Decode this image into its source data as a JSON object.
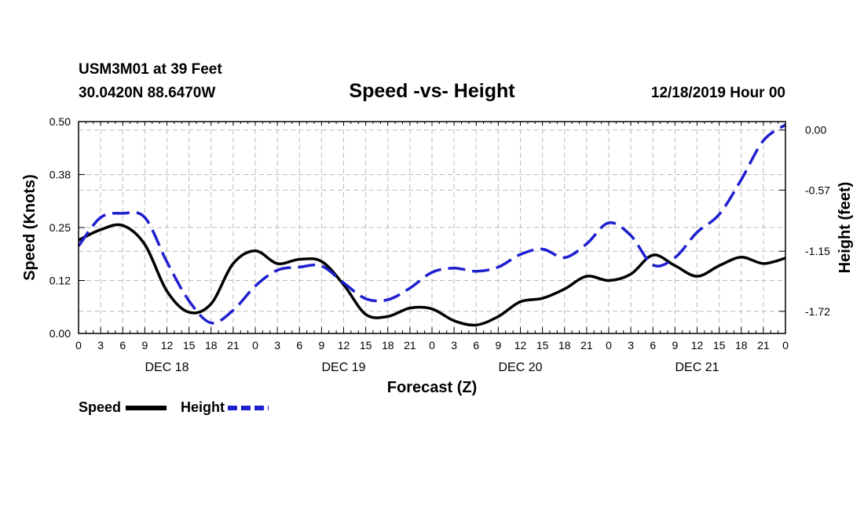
{
  "header": {
    "station": "USM3M01 at 39 Feet",
    "coords": "30.0420N 88.6470W",
    "date": "12/18/2019 Hour 00"
  },
  "legend": {
    "speed_label": "Speed",
    "height_label": "Height"
  },
  "colors": {
    "speed": "#000000",
    "height": "#1f1fd0",
    "grid": "#bbbbbb"
  },
  "chart_data": {
    "type": "line",
    "title": "Speed -vs- Height",
    "xlabel": "Forecast (Z)",
    "ylabel": "Speed (Knots)",
    "y2label": "Height (feet)",
    "x_range": [
      0,
      96
    ],
    "x_ticks": [
      0,
      3,
      6,
      9,
      12,
      15,
      18,
      21,
      24,
      27,
      30,
      33,
      36,
      39,
      42,
      45,
      48,
      51,
      54,
      57,
      60,
      63,
      66,
      69,
      72,
      75,
      78,
      81,
      84,
      87,
      90,
      93,
      96
    ],
    "x_tick_labels": [
      "0",
      "3",
      "6",
      "9",
      "12",
      "15",
      "18",
      "21",
      "0",
      "3",
      "6",
      "9",
      "12",
      "15",
      "18",
      "21",
      "0",
      "3",
      "6",
      "9",
      "12",
      "15",
      "18",
      "21",
      "0",
      "3",
      "6",
      "9",
      "12",
      "15",
      "18",
      "21",
      "0"
    ],
    "day_labels": [
      {
        "label": "DEC 18",
        "x": 12
      },
      {
        "label": "DEC 19",
        "x": 36
      },
      {
        "label": "DEC 20",
        "x": 60
      },
      {
        "label": "DEC 21",
        "x": 84
      }
    ],
    "y_left": {
      "range": [
        0,
        0.5
      ],
      "ticks": [
        0,
        0.125,
        0.25,
        0.375,
        0.5
      ],
      "tick_labels": [
        "0.00",
        "0.12",
        "0.25",
        "0.38",
        "0.50"
      ]
    },
    "y_right": {
      "range": [
        -1.93,
        0.08
      ],
      "ticks": [
        0,
        -0.57,
        -1.15,
        -1.72
      ],
      "tick_labels": [
        "0.00",
        "-0.57",
        "-1.15",
        "-1.72"
      ]
    },
    "series": [
      {
        "name": "Speed",
        "axis": "left",
        "style": "solid",
        "x": [
          0,
          3,
          6,
          9,
          12,
          15,
          18,
          21,
          24,
          27,
          30,
          33,
          36,
          39,
          42,
          45,
          48,
          51,
          54,
          57,
          60,
          63,
          66,
          69,
          72,
          75,
          78,
          81,
          84,
          87,
          90,
          93,
          96
        ],
        "values": [
          0.22,
          0.245,
          0.255,
          0.21,
          0.1,
          0.05,
          0.07,
          0.165,
          0.195,
          0.165,
          0.175,
          0.17,
          0.115,
          0.045,
          0.04,
          0.06,
          0.058,
          0.03,
          0.02,
          0.04,
          0.075,
          0.083,
          0.105,
          0.135,
          0.125,
          0.14,
          0.185,
          0.16,
          0.135,
          0.16,
          0.18,
          0.165,
          0.178
        ]
      },
      {
        "name": "Height",
        "axis": "right",
        "style": "dashed",
        "x": [
          0,
          3,
          6,
          9,
          12,
          15,
          18,
          21,
          24,
          27,
          30,
          33,
          36,
          39,
          42,
          45,
          48,
          51,
          54,
          57,
          60,
          63,
          66,
          69,
          72,
          75,
          78,
          81,
          84,
          87,
          90,
          93,
          96
        ],
        "values": [
          -1.1,
          -0.83,
          -0.79,
          -0.83,
          -1.25,
          -1.62,
          -1.83,
          -1.71,
          -1.48,
          -1.33,
          -1.3,
          -1.29,
          -1.45,
          -1.6,
          -1.61,
          -1.5,
          -1.35,
          -1.31,
          -1.34,
          -1.3,
          -1.18,
          -1.13,
          -1.21,
          -1.08,
          -0.88,
          -1.0,
          -1.28,
          -1.21,
          -0.97,
          -0.8,
          -0.47,
          -0.1,
          0.05
        ]
      }
    ]
  }
}
